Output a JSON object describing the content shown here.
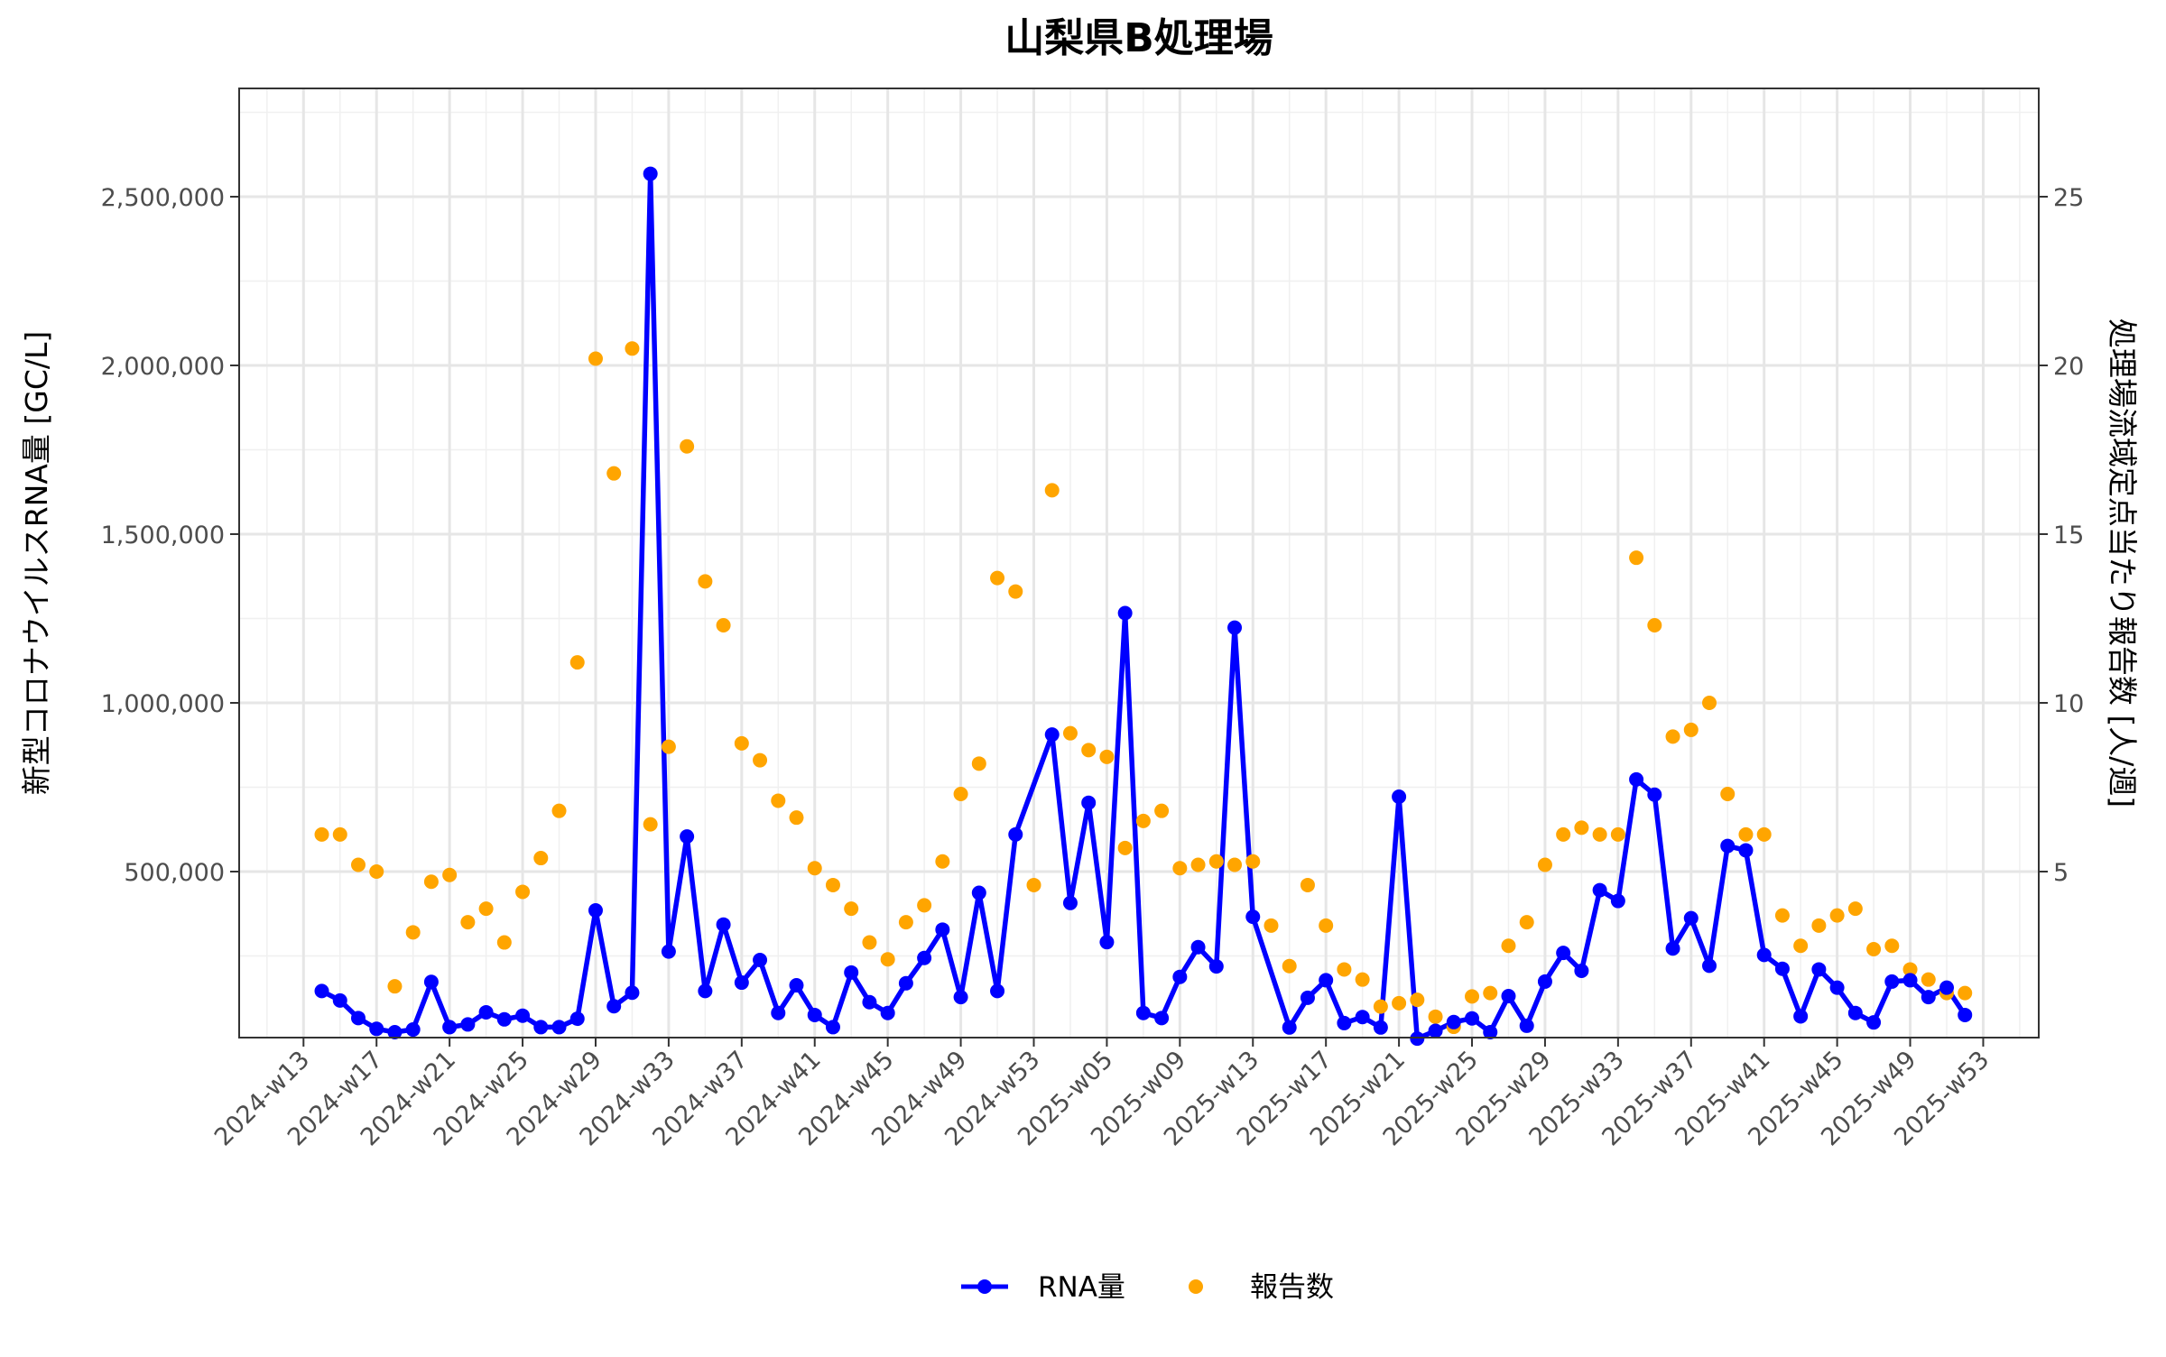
{
  "chart_data": {
    "type": "line",
    "title": "山梨県B処理場",
    "ylabel": "新型コロナウイルスRNA量 [GC/L]",
    "y2label": "処理場流域定点当たり報告数 [人/週]",
    "xlabel": "",
    "x_ticks": [
      "2024-w13",
      "2024-w17",
      "2024-w21",
      "2024-w25",
      "2024-w29",
      "2024-w33",
      "2024-w37",
      "2024-w41",
      "2024-w45",
      "2024-w49",
      "2024-w53",
      "2025-w05",
      "2025-w09",
      "2025-w13",
      "2025-w17",
      "2025-w21",
      "2025-w25",
      "2025-w29",
      "2025-w33",
      "2025-w37",
      "2025-w41",
      "2025-w45",
      "2025-w49",
      "2025-w53"
    ],
    "y_ticks": [
      "500,000",
      "1,000,000",
      "1,500,000",
      "2,000,000",
      "2,500,000"
    ],
    "y_tick_values": [
      500000,
      1000000,
      1500000,
      2000000,
      2500000
    ],
    "y2_ticks": [
      "5",
      "10",
      "15",
      "20",
      "25"
    ],
    "y2_tick_values": [
      5,
      10,
      15,
      20,
      25
    ],
    "ylim": [
      0,
      2800000
    ],
    "y2lim": [
      0,
      28
    ],
    "grid": true,
    "legend_position": "bottom",
    "x": [
      "2024-w14",
      "2024-w15",
      "2024-w16",
      "2024-w17",
      "2024-w18",
      "2024-w19",
      "2024-w20",
      "2024-w21",
      "2024-w22",
      "2024-w23",
      "2024-w24",
      "2024-w25",
      "2024-w26",
      "2024-w27",
      "2024-w28",
      "2024-w29",
      "2024-w30",
      "2024-w31",
      "2024-w32",
      "2024-w33",
      "2024-w34",
      "2024-w35",
      "2024-w36",
      "2024-w37",
      "2024-w38",
      "2024-w39",
      "2024-w40",
      "2024-w41",
      "2024-w42",
      "2024-w43",
      "2024-w44",
      "2024-w45",
      "2024-w46",
      "2024-w47",
      "2024-w48",
      "2024-w49",
      "2024-w50",
      "2024-w51",
      "2024-w52",
      "2024-w53",
      "2025-w02",
      "2025-w03",
      "2025-w04",
      "2025-w05",
      "2025-w06",
      "2025-w07",
      "2025-w08",
      "2025-w09",
      "2025-w10",
      "2025-w11",
      "2025-w12",
      "2025-w13",
      "2025-w14",
      "2025-w15",
      "2025-w16",
      "2025-w17",
      "2025-w18",
      "2025-w19",
      "2025-w20",
      "2025-w21",
      "2025-w22",
      "2025-w23",
      "2025-w24",
      "2025-w25",
      "2025-w26",
      "2025-w27",
      "2025-w28",
      "2025-w29",
      "2025-w30",
      "2025-w31",
      "2025-w32",
      "2025-w33",
      "2025-w34",
      "2025-w35",
      "2025-w36",
      "2025-w37",
      "2025-w38",
      "2025-w39",
      "2025-w40",
      "2025-w41",
      "2025-w42",
      "2025-w43",
      "2025-w44",
      "2025-w45",
      "2025-w46",
      "2025-w47",
      "2025-w48",
      "2025-w49",
      "2025-w50",
      "2025-w51",
      "2025-w52"
    ],
    "series": [
      {
        "name": "RNA量",
        "axis": "left",
        "kind": "line+points",
        "color": "#0000FF",
        "values": [
          146000,
          118000,
          66000,
          34000,
          24000,
          32000,
          173000,
          39000,
          47000,
          83000,
          62000,
          73000,
          39000,
          39000,
          64000,
          385000,
          101000,
          141000,
          2568000,
          263000,
          604000,
          146000,
          343000,
          171000,
          238000,
          81000,
          163000,
          75000,
          39000,
          201000,
          113000,
          81000,
          169000,
          244000,
          328000,
          128000,
          437000,
          146000,
          610000,
          null,
          906000,
          407000,
          704000,
          291000,
          1266000,
          81000,
          66000,
          188000,
          276000,
          219000,
          1223000,
          366000,
          null,
          38000,
          126000,
          178000,
          51000,
          69000,
          38000,
          722000,
          5000,
          28000,
          54000,
          65000,
          24000,
          131000,
          43000,
          174000,
          259000,
          206000,
          445000,
          413000,
          773000,
          728000,
          272000,
          362000,
          221000,
          576000,
          563000,
          253000,
          212000,
          71000,
          210000,
          156000,
          81000,
          53000,
          174000,
          178000,
          128000,
          156000,
          75000
        ]
      },
      {
        "name": "報告数",
        "axis": "right",
        "kind": "points",
        "color": "#FFA500",
        "values": [
          6.1,
          6.1,
          5.2,
          5.0,
          1.6,
          3.2,
          4.7,
          4.9,
          3.5,
          3.9,
          2.9,
          4.4,
          5.4,
          6.8,
          11.2,
          20.2,
          16.8,
          20.5,
          6.4,
          8.7,
          17.6,
          13.6,
          12.3,
          8.8,
          8.3,
          7.1,
          6.6,
          5.1,
          4.6,
          3.9,
          2.9,
          2.4,
          3.5,
          4.0,
          5.3,
          7.3,
          8.2,
          13.7,
          13.3,
          4.6,
          16.3,
          9.1,
          8.6,
          8.4,
          5.7,
          6.5,
          6.8,
          5.1,
          5.2,
          5.3,
          5.2,
          5.3,
          3.4,
          2.2,
          4.6,
          3.4,
          2.1,
          1.8,
          1.0,
          1.1,
          1.2,
          0.7,
          0.4,
          1.3,
          1.4,
          2.8,
          3.5,
          5.2,
          6.1,
          6.3,
          6.1,
          6.1,
          14.3,
          12.3,
          9.0,
          9.2,
          10.0,
          7.3,
          6.1,
          6.1,
          3.7,
          2.8,
          3.4,
          3.7,
          3.9,
          2.7,
          2.8,
          2.1,
          1.8,
          1.4,
          1.4
        ]
      }
    ]
  },
  "legend": {
    "rna_label": "RNA量",
    "reports_label": "報告数"
  }
}
